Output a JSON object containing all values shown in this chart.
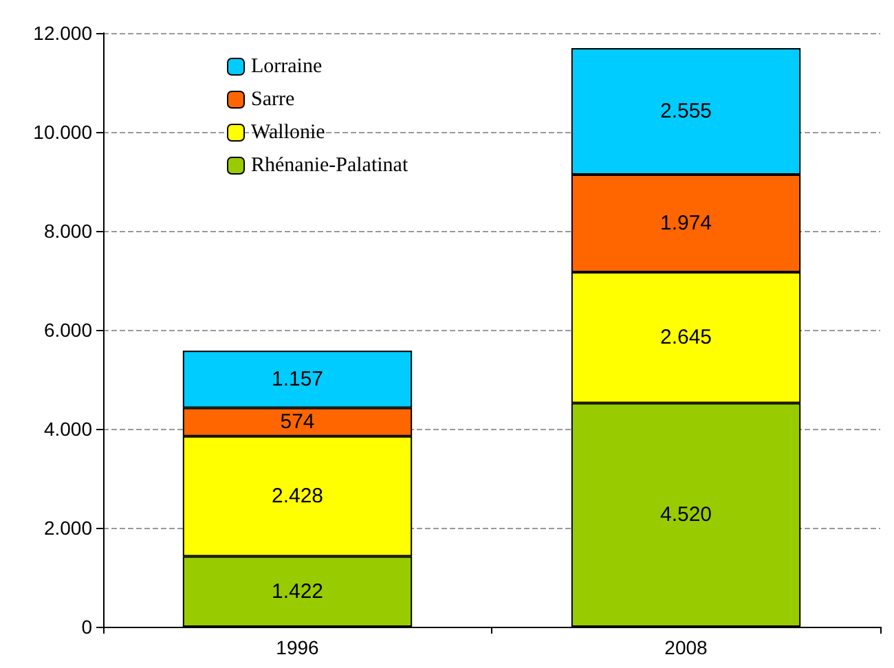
{
  "chart_data": {
    "type": "bar",
    "stacked": true,
    "categories": [
      "1996",
      "2008"
    ],
    "series": [
      {
        "name": "Rhénanie-Palatinat",
        "color": "#99cc00",
        "values": [
          1422,
          4520
        ],
        "value_labels": [
          "1.422",
          "4.520"
        ]
      },
      {
        "name": "Wallonie",
        "color": "#ffff00",
        "values": [
          2428,
          2645
        ],
        "value_labels": [
          "2.428",
          "2.645"
        ]
      },
      {
        "name": "Sarre",
        "color": "#ff6600",
        "values": [
          574,
          1974
        ],
        "value_labels": [
          "574",
          "1.974"
        ]
      },
      {
        "name": "Lorraine",
        "color": "#00ccff",
        "values": [
          1157,
          2555
        ],
        "value_labels": [
          "1.157",
          "2.555"
        ]
      }
    ],
    "ylim": [
      0,
      12000
    ],
    "yticks": [
      {
        "value": 0,
        "label": "0"
      },
      {
        "value": 2000,
        "label": "2.000"
      },
      {
        "value": 4000,
        "label": "4.000"
      },
      {
        "value": 6000,
        "label": "6.000"
      },
      {
        "value": 8000,
        "label": "8.000"
      },
      {
        "value": 10000,
        "label": "10.000"
      },
      {
        "value": 12000,
        "label": "12.000"
      }
    ],
    "grid": "y",
    "legend": "top left"
  }
}
